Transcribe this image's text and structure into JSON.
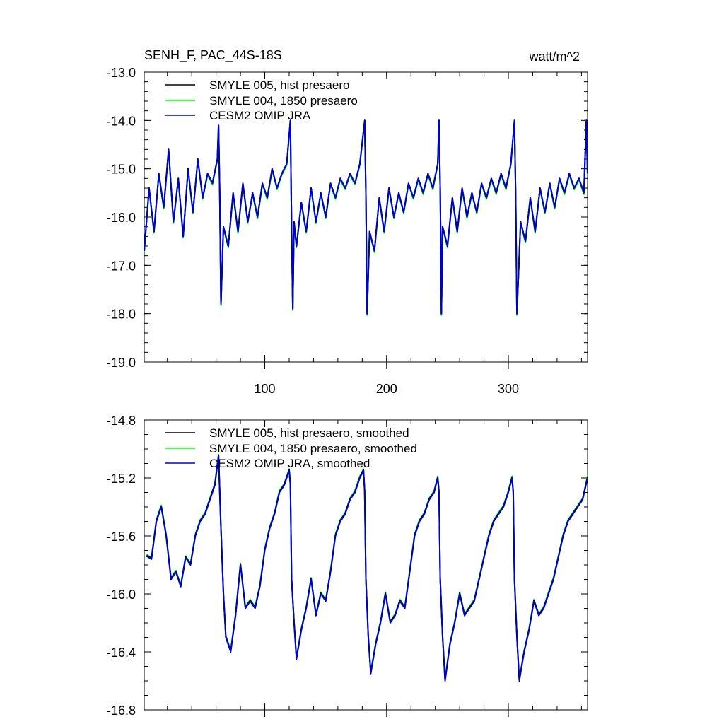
{
  "colors": {
    "smyle005": "#000000",
    "smyle004": "#00ff00",
    "cesm2": "#0000cd"
  },
  "chart_data": [
    {
      "type": "line",
      "title": "SENH_F, PAC_44S-18S",
      "units": "watt/m^2",
      "xlim": [
        1,
        365
      ],
      "ylim": [
        -19.0,
        -13.0
      ],
      "x_ticks": [
        100,
        200,
        300
      ],
      "x_tick_labels": [
        "100",
        "200",
        "300"
      ],
      "y_ticks": [
        -13.0,
        -14.0,
        -15.0,
        -16.0,
        -17.0,
        -18.0,
        -19.0
      ],
      "y_tick_labels": [
        "-13.0",
        "-14.0",
        "-15.0",
        "-16.0",
        "-17.0",
        "-18.0",
        "-19.0"
      ],
      "legend": [
        "SMYLE 005, hist presaero",
        "SMYLE 004, 1850 presaero",
        "CESM2 OMIP JRA"
      ],
      "legend_position": "top-left",
      "series": [
        {
          "name": "SMYLE 005, hist presaero",
          "color_key": "smyle005",
          "x": [],
          "y": []
        },
        {
          "name": "SMYLE 004, 1850 presaero",
          "color_key": "smyle004",
          "x": [],
          "y": []
        },
        {
          "name": "CESM2 OMIP JRA",
          "color_key": "cesm2",
          "x": [
            1,
            5,
            9,
            13,
            17,
            21,
            25,
            29,
            33,
            37,
            41,
            45,
            49,
            53,
            57,
            61,
            62,
            63,
            64,
            66,
            70,
            74,
            78,
            82,
            86,
            90,
            94,
            98,
            102,
            106,
            110,
            114,
            118,
            121,
            122,
            123,
            124,
            126,
            130,
            134,
            138,
            142,
            146,
            150,
            154,
            158,
            162,
            166,
            170,
            174,
            178,
            182,
            183,
            184,
            186,
            190,
            194,
            198,
            202,
            206,
            210,
            214,
            218,
            222,
            226,
            230,
            234,
            238,
            242,
            243,
            244,
            245,
            246,
            250,
            254,
            258,
            262,
            266,
            270,
            274,
            278,
            282,
            286,
            290,
            294,
            298,
            302,
            305,
            306,
            307,
            310,
            314,
            318,
            322,
            326,
            330,
            334,
            338,
            342,
            346,
            350,
            354,
            358,
            362,
            364,
            365
          ],
          "y": [
            -16.7,
            -15.4,
            -16.3,
            -15.1,
            -15.8,
            -14.6,
            -16.1,
            -15.2,
            -16.4,
            -15.0,
            -15.9,
            -14.8,
            -15.6,
            -15.1,
            -15.3,
            -14.8,
            -14.1,
            -15.5,
            -17.8,
            -16.2,
            -16.6,
            -15.5,
            -16.3,
            -15.3,
            -16.1,
            -15.5,
            -16.0,
            -15.3,
            -15.6,
            -15.0,
            -15.4,
            -15.1,
            -14.9,
            -14.0,
            -16.2,
            -17.9,
            -16.1,
            -16.6,
            -15.7,
            -16.3,
            -15.4,
            -16.1,
            -15.5,
            -16.0,
            -15.3,
            -15.6,
            -15.2,
            -15.4,
            -15.1,
            -15.3,
            -14.9,
            -14.0,
            -15.5,
            -18.0,
            -16.3,
            -16.7,
            -15.6,
            -16.3,
            -15.4,
            -16.0,
            -15.5,
            -15.9,
            -15.3,
            -15.6,
            -15.2,
            -15.5,
            -15.1,
            -15.4,
            -14.9,
            -14.0,
            -15.4,
            -18.0,
            -16.2,
            -16.6,
            -15.6,
            -16.3,
            -15.4,
            -16.0,
            -15.5,
            -15.9,
            -15.3,
            -15.6,
            -15.2,
            -15.5,
            -15.1,
            -15.4,
            -14.9,
            -14.0,
            -15.6,
            -18.0,
            -16.1,
            -16.5,
            -15.6,
            -16.3,
            -15.4,
            -15.9,
            -15.3,
            -15.8,
            -15.2,
            -15.5,
            -15.1,
            -15.4,
            -15.2,
            -15.5,
            -14.0,
            -15.1
          ]
        }
      ]
    },
    {
      "type": "line",
      "title": "",
      "xlim": [
        1,
        365
      ],
      "ylim": [
        -16.8,
        -14.8
      ],
      "x_ticks": [
        100,
        200,
        300
      ],
      "y_ticks": [
        -14.8,
        -15.2,
        -15.6,
        -16.0,
        -16.4,
        -16.8
      ],
      "y_tick_labels": [
        "-14.8",
        "-15.2",
        "-15.6",
        "-16.0",
        "-16.4",
        "-16.8"
      ],
      "legend": [
        "SMYLE 005, hist presaero, smoothed",
        "SMYLE 004, 1850 presaero, smoothed",
        "CESM2 OMIP JRA, smoothed"
      ],
      "legend_position": "top-left",
      "series": [
        {
          "name": "SMYLE 005, hist presaero, smoothed",
          "color_key": "smyle005",
          "x": [],
          "y": []
        },
        {
          "name": "SMYLE 004, 1850 presaero, smoothed",
          "color_key": "smyle004",
          "x": [],
          "y": []
        },
        {
          "name": "CESM2 OMIP JRA, smoothed",
          "color_key": "cesm2",
          "x": [
            3,
            7,
            11,
            15,
            19,
            23,
            27,
            31,
            35,
            39,
            43,
            47,
            51,
            55,
            59,
            62,
            64,
            66,
            68,
            72,
            76,
            80,
            84,
            88,
            92,
            96,
            100,
            104,
            108,
            112,
            116,
            120,
            121,
            122,
            124,
            126,
            130,
            134,
            138,
            142,
            146,
            150,
            154,
            158,
            162,
            166,
            170,
            174,
            178,
            181,
            182,
            183,
            185,
            187,
            191,
            195,
            199,
            203,
            207,
            211,
            215,
            219,
            223,
            227,
            231,
            235,
            239,
            242,
            243,
            244,
            246,
            248,
            252,
            256,
            260,
            264,
            268,
            272,
            276,
            280,
            284,
            288,
            292,
            296,
            300,
            303,
            304,
            305,
            307,
            309,
            313,
            317,
            321,
            325,
            329,
            333,
            337,
            341,
            345,
            349,
            353,
            357,
            361,
            365
          ],
          "y": [
            -15.74,
            -15.76,
            -15.5,
            -15.4,
            -15.6,
            -15.9,
            -15.85,
            -15.95,
            -15.75,
            -15.8,
            -15.6,
            -15.5,
            -15.45,
            -15.35,
            -15.25,
            -15.05,
            -15.55,
            -16.0,
            -16.3,
            -16.4,
            -16.15,
            -15.8,
            -16.1,
            -16.05,
            -16.1,
            -15.95,
            -15.7,
            -15.55,
            -15.45,
            -15.3,
            -15.25,
            -15.15,
            -15.25,
            -15.9,
            -16.2,
            -16.45,
            -16.25,
            -16.1,
            -15.9,
            -16.15,
            -16.0,
            -16.05,
            -15.85,
            -15.6,
            -15.5,
            -15.45,
            -15.35,
            -15.3,
            -15.2,
            -15.15,
            -15.3,
            -15.9,
            -16.3,
            -16.55,
            -16.35,
            -16.2,
            -16.0,
            -16.2,
            -16.15,
            -16.05,
            -16.1,
            -15.85,
            -15.6,
            -15.5,
            -15.45,
            -15.35,
            -15.3,
            -15.2,
            -15.3,
            -15.9,
            -16.3,
            -16.6,
            -16.35,
            -16.2,
            -16.0,
            -16.15,
            -16.1,
            -16.05,
            -15.9,
            -15.75,
            -15.6,
            -15.5,
            -15.45,
            -15.4,
            -15.3,
            -15.2,
            -15.3,
            -15.9,
            -16.3,
            -16.6,
            -16.4,
            -16.25,
            -16.05,
            -16.15,
            -16.1,
            -16.0,
            -15.9,
            -15.75,
            -15.6,
            -15.5,
            -15.45,
            -15.4,
            -15.35,
            -15.2
          ]
        }
      ]
    }
  ]
}
